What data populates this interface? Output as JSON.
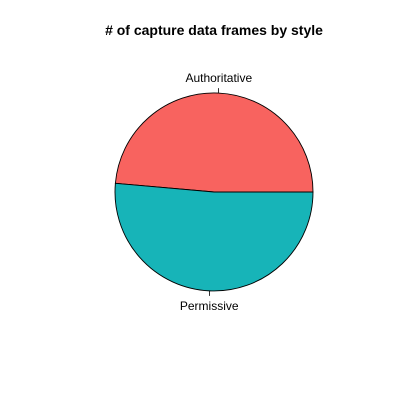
{
  "chart_data": {
    "type": "pie",
    "title": "# of capture data frames by style",
    "categories": [
      "Authoritative",
      "Permissive"
    ],
    "values": [
      48.6,
      51.4
    ],
    "colors": [
      "#F8635F",
      "#17B4B8"
    ],
    "start_angle_deg": 0,
    "direction": "counterclockwise",
    "legend": "none"
  }
}
